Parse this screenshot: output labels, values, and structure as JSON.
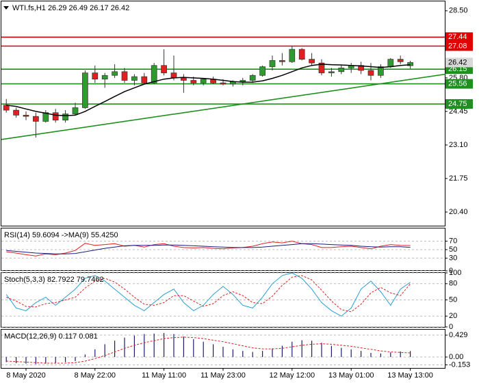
{
  "chart_data": [
    {
      "type": "candlestick",
      "title": "WTI.fs,H1  26.29 26.49 26.17 26.42",
      "categories": [
        null,
        null,
        "8 May 2020",
        null,
        null,
        null,
        null,
        null,
        null,
        "8 May 22:00",
        null,
        null,
        null,
        null,
        null,
        null,
        "11 May 11:00",
        null,
        null,
        null,
        null,
        null,
        "11 May 23:00",
        null,
        null,
        null,
        null,
        null,
        null,
        "12 May 12:00",
        null,
        null,
        null,
        null,
        null,
        "13 May 01:00",
        null,
        null,
        null,
        null,
        null,
        "13 May 13:00"
      ],
      "open": [
        24.7,
        24.5,
        24.3,
        24.25,
        24.05,
        24.4,
        24.1,
        24.35,
        24.6,
        26.0,
        25.75,
        25.9,
        26.05,
        25.7,
        25.85,
        25.6,
        26.3,
        26.0,
        25.8,
        25.7,
        25.6,
        25.75,
        25.6,
        25.55,
        25.65,
        25.7,
        25.9,
        26.25,
        26.5,
        26.45,
        26.95,
        26.55,
        26.4,
        26.0,
        26.05,
        26.2,
        26.3,
        26.1,
        25.9,
        26.25,
        26.55,
        26.29
      ],
      "high": [
        24.95,
        24.6,
        24.45,
        24.4,
        24.5,
        24.55,
        24.5,
        24.8,
        26.1,
        26.3,
        26.0,
        26.35,
        26.2,
        25.95,
        26.0,
        26.4,
        26.95,
        26.7,
        25.95,
        25.85,
        25.8,
        25.85,
        25.75,
        25.7,
        25.8,
        25.95,
        26.3,
        26.7,
        26.8,
        27.1,
        27.0,
        26.8,
        26.55,
        26.2,
        26.3,
        26.4,
        26.45,
        26.4,
        26.35,
        26.6,
        26.7,
        26.49
      ],
      "low": [
        24.4,
        24.2,
        24.1,
        23.4,
        24.0,
        24.0,
        24.0,
        24.3,
        24.55,
        25.6,
        25.4,
        25.8,
        25.6,
        25.5,
        25.55,
        25.55,
        25.9,
        25.7,
        25.2,
        25.5,
        25.5,
        25.55,
        25.5,
        25.45,
        25.5,
        25.6,
        25.85,
        26.1,
        26.3,
        26.4,
        26.5,
        26.3,
        25.9,
        25.85,
        25.95,
        26.0,
        25.95,
        25.7,
        25.8,
        26.2,
        26.35,
        26.17
      ],
      "close": [
        24.5,
        24.3,
        24.25,
        24.05,
        24.4,
        24.1,
        24.35,
        24.6,
        26.0,
        25.75,
        25.9,
        26.05,
        25.7,
        25.85,
        25.6,
        26.3,
        26.0,
        25.8,
        25.7,
        25.6,
        25.75,
        25.6,
        25.55,
        25.65,
        25.7,
        25.9,
        26.25,
        26.5,
        26.45,
        26.95,
        26.55,
        26.4,
        26.0,
        26.05,
        26.2,
        26.3,
        26.1,
        25.9,
        26.25,
        26.55,
        26.45,
        26.42
      ],
      "up_color": "#2e9b2e",
      "down_color": "#e02020",
      "ma": {
        "color": "#000000",
        "values": [
          24.7,
          24.65,
          24.55,
          24.45,
          24.38,
          24.3,
          24.28,
          24.3,
          24.45,
          24.65,
          24.85,
          25.05,
          25.25,
          25.4,
          25.55,
          25.65,
          25.75,
          25.8,
          25.82,
          25.8,
          25.78,
          25.75,
          25.7,
          25.65,
          25.63,
          25.63,
          25.68,
          25.78,
          25.9,
          26.05,
          26.2,
          26.3,
          26.35,
          26.33,
          26.32,
          26.3,
          26.28,
          26.25,
          26.22,
          26.25,
          26.3,
          26.33
        ]
      },
      "trendline": {
        "color": "#1f8f1f",
        "x": [
          -0.5,
          44.6
        ],
        "y": [
          23.32,
          25.95
        ]
      },
      "levels": [
        {
          "value": 27.44,
          "color": "#e00000"
        },
        {
          "value": 27.08,
          "color": "#e00000"
        },
        {
          "value": 26.15,
          "color": "#1f8f1f"
        },
        {
          "value": 25.56,
          "color": "#1f8f1f"
        },
        {
          "value": 24.75,
          "color": "#1f8f1f"
        }
      ],
      "price": {
        "value": 26.42,
        "color": "#d8d8d8"
      },
      "ylim": [
        19.85,
        28.88
      ],
      "yticks": [
        {
          "value": 28.5,
          "label": "28.50"
        },
        {
          "value": 25.8,
          "label": "25.80"
        },
        24.45,
        {
          "value": 23.1,
          "label": "23.10"
        },
        21.75,
        {
          "value": 20.4,
          "label": "20.40"
        }
      ]
    },
    {
      "type": "line",
      "title": "RSI(14) 59.6094 ->MA(9) 55.4250",
      "series": [
        {
          "color": "#e02020",
          "dash": false,
          "values": [
            45,
            42,
            38,
            35,
            40,
            38,
            42,
            48,
            65,
            60,
            62,
            64,
            58,
            60,
            56,
            62,
            64,
            58,
            55,
            54,
            55,
            53,
            52,
            54,
            55,
            58,
            64,
            68,
            66,
            70,
            64,
            62,
            55,
            55,
            57,
            58,
            55,
            52,
            58,
            62,
            60,
            59.6094
          ]
        },
        {
          "color": "#1a1a7a",
          "dash": false,
          "values": [
            48,
            46,
            44,
            42,
            41,
            40,
            40,
            41,
            45,
            49,
            53,
            56,
            59,
            60,
            60,
            60,
            61,
            61,
            60,
            59,
            58,
            57,
            56,
            55,
            55,
            55,
            56,
            58,
            60,
            62,
            64,
            64,
            63,
            62,
            61,
            60,
            58,
            57,
            56,
            57,
            57,
            55.425
          ]
        }
      ],
      "ylim": [
        0,
        100
      ],
      "yticks": [
        70,
        50,
        30,
        0
      ],
      "grid": true
    },
    {
      "type": "line",
      "title": "Stoch(5,3,3) 82.7922 79.7462",
      "series": [
        {
          "color": "#2a9fd0",
          "dash": false,
          "values": [
            60,
            35,
            30,
            45,
            55,
            40,
            55,
            70,
            90,
            95,
            85,
            70,
            55,
            40,
            30,
            45,
            60,
            70,
            45,
            30,
            40,
            60,
            75,
            60,
            40,
            35,
            55,
            80,
            95,
            100,
            90,
            70,
            45,
            30,
            20,
            35,
            70,
            85,
            65,
            40,
            70,
            82.7922
          ]
        },
        {
          "color": "#e02020",
          "dash": true,
          "values": [
            55,
            48,
            38,
            37,
            43,
            45,
            50,
            55,
            72,
            85,
            90,
            83,
            70,
            55,
            42,
            40,
            45,
            58,
            58,
            48,
            38,
            43,
            58,
            65,
            58,
            45,
            43,
            57,
            77,
            92,
            95,
            87,
            68,
            48,
            32,
            28,
            42,
            63,
            73,
            63,
            58,
            79.7462
          ]
        }
      ],
      "ylim": [
        0,
        100
      ],
      "yticks": [
        100,
        80,
        50,
        20,
        0
      ],
      "grid": true
    },
    {
      "type": "bar",
      "title": "MACD(12,26,9) 0.117 0.081",
      "color": "#1a1a6e",
      "values": [
        -0.1,
        -0.12,
        -0.13,
        -0.14,
        -0.13,
        -0.12,
        -0.1,
        -0.08,
        0.05,
        0.15,
        0.25,
        0.32,
        0.38,
        0.42,
        0.45,
        0.46,
        0.47,
        0.45,
        0.4,
        0.35,
        0.3,
        0.25,
        0.2,
        0.15,
        0.12,
        0.1,
        0.12,
        0.17,
        0.22,
        0.3,
        0.33,
        0.32,
        0.28,
        0.22,
        0.18,
        0.15,
        0.12,
        0.08,
        0.07,
        0.09,
        0.11,
        0.117
      ],
      "signal": {
        "color": "#e02020",
        "dash": true,
        "values": [
          -0.08,
          -0.09,
          -0.1,
          -0.11,
          -0.12,
          -0.12,
          -0.12,
          -0.11,
          -0.08,
          -0.03,
          0.03,
          0.1,
          0.17,
          0.23,
          0.28,
          0.32,
          0.36,
          0.38,
          0.39,
          0.38,
          0.36,
          0.33,
          0.3,
          0.26,
          0.22,
          0.18,
          0.16,
          0.16,
          0.17,
          0.2,
          0.23,
          0.25,
          0.26,
          0.25,
          0.23,
          0.21,
          0.18,
          0.15,
          0.12,
          0.1,
          0.09,
          0.081
        ]
      },
      "ylim": [
        -0.214,
        0.536
      ],
      "yticks": [
        0.429,
        {
          "value": 0,
          "label": "0.00"
        },
        -0.153
      ],
      "grid": true
    }
  ]
}
